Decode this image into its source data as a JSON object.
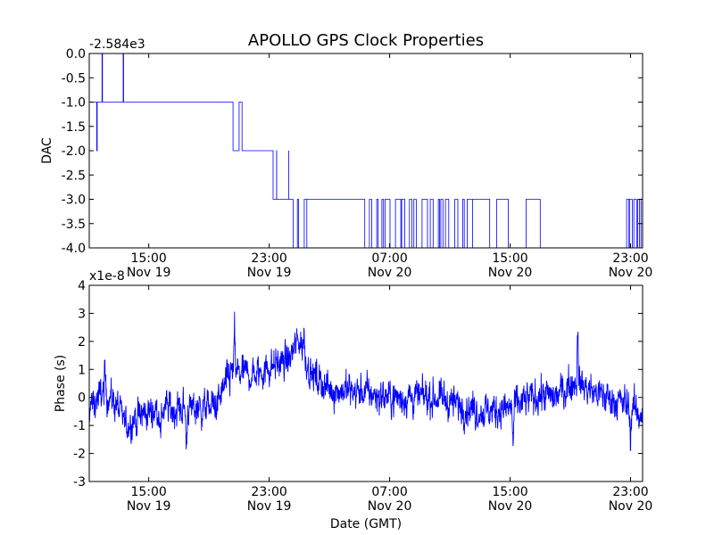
{
  "chart_data": {
    "title": "APOLLO GPS Clock Properties",
    "xlabel": "Date (GMT)",
    "x_ticks": [
      {
        "time": "15:00",
        "date": "Nov 19",
        "hours": 15
      },
      {
        "time": "23:00",
        "date": "Nov 19",
        "hours": 23
      },
      {
        "time": "07:00",
        "date": "Nov 20",
        "hours": 31
      },
      {
        "time": "15:00",
        "date": "Nov 20",
        "hours": 39
      },
      {
        "time": "23:00",
        "date": "Nov 20",
        "hours": 47
      }
    ],
    "xlim_hours": [
      11.05,
      47.8
    ],
    "panels": [
      {
        "type": "line",
        "ylabel": "DAC",
        "offset_text": "-2.584e3",
        "ylim": [
          -4.0,
          0.0
        ],
        "yticks": [
          "0.0",
          "-0.5",
          "-1.0",
          "-1.5",
          "-2.0",
          "-2.5",
          "-3.0",
          "-3.5",
          "-4.0"
        ],
        "ytick_values": [
          0.0,
          -0.5,
          -1.0,
          -1.5,
          -2.0,
          -2.5,
          -3.0,
          -3.5,
          -4.0
        ],
        "color": "#0000ff",
        "segments": [
          {
            "start": 11.05,
            "end": 14.3,
            "level": -1,
            "toggle": 0,
            "rate": 4
          },
          {
            "start": 14.3,
            "end": 19.8,
            "level": -1,
            "toggle": 0,
            "rate": 6
          },
          {
            "start": 19.8,
            "end": 20.6,
            "level": -1,
            "toggle": 0,
            "rate": 0
          },
          {
            "start": 20.6,
            "end": 21.0,
            "level": -2,
            "toggle": 0,
            "rate": 0
          },
          {
            "start": 21.0,
            "end": 21.2,
            "level": -1,
            "toggle": 0,
            "rate": 0
          },
          {
            "start": 21.2,
            "end": 22.8,
            "level": -2,
            "toggle": 0,
            "rate": 0
          },
          {
            "start": 22.8,
            "end": 23.5,
            "level": -2,
            "toggle": -3,
            "rate": 3
          },
          {
            "start": 23.5,
            "end": 24.3,
            "level": -3,
            "toggle": -2,
            "rate": 2
          },
          {
            "start": 24.3,
            "end": 25.5,
            "level": -3,
            "toggle": -4,
            "rate": 5
          },
          {
            "start": 25.5,
            "end": 29.0,
            "level": -3,
            "toggle": 0,
            "rate": 0
          },
          {
            "start": 29.0,
            "end": 36.5,
            "level": -3,
            "toggle": -4,
            "rate": 5
          },
          {
            "start": 36.5,
            "end": 41.0,
            "level": -3,
            "toggle": -4,
            "rate": 1.5
          },
          {
            "start": 41.0,
            "end": 46.7,
            "level": -4,
            "toggle": 0,
            "rate": 0
          },
          {
            "start": 46.7,
            "end": 47.8,
            "level": -4,
            "toggle": -3,
            "rate": 8
          }
        ]
      },
      {
        "type": "line",
        "ylabel": "Phase (s)",
        "offset_text": "x1e-8",
        "ylim": [
          -3,
          4
        ],
        "yticks": [
          "4",
          "3",
          "2",
          "1",
          "0",
          "-1",
          "-2",
          "-3"
        ],
        "ytick_values": [
          4,
          3,
          2,
          1,
          0,
          -1,
          -2,
          -3
        ],
        "color": "#0000ff",
        "baseline_knots": [
          [
            11.05,
            -0.4
          ],
          [
            12.0,
            0.2
          ],
          [
            12.8,
            -0.2
          ],
          [
            13.5,
            -1.0
          ],
          [
            14.5,
            -0.6
          ],
          [
            16.0,
            -0.4
          ],
          [
            18.0,
            -0.4
          ],
          [
            19.5,
            -0.3
          ],
          [
            20.5,
            0.9
          ],
          [
            22.0,
            0.8
          ],
          [
            23.5,
            1.2
          ],
          [
            24.3,
            1.3
          ],
          [
            25.0,
            2.1
          ],
          [
            25.8,
            0.8
          ],
          [
            27.0,
            0.3
          ],
          [
            29.0,
            0.2
          ],
          [
            31.0,
            0.0
          ],
          [
            34.0,
            0.0
          ],
          [
            37.0,
            -0.5
          ],
          [
            39.0,
            -0.4
          ],
          [
            41.0,
            0.1
          ],
          [
            42.0,
            0.0
          ],
          [
            43.3,
            0.6
          ],
          [
            44.5,
            0.2
          ],
          [
            46.5,
            -0.2
          ],
          [
            47.8,
            -0.6
          ]
        ],
        "spikes": [
          [
            12.1,
            0.8
          ],
          [
            20.7,
            1.4
          ],
          [
            25.3,
            0.8
          ],
          [
            43.5,
            2.3
          ],
          [
            15.8,
            -1.2
          ],
          [
            17.5,
            -1.5
          ],
          [
            39.2,
            -1.5
          ],
          [
            47.0,
            -1.2
          ]
        ]
      }
    ]
  }
}
